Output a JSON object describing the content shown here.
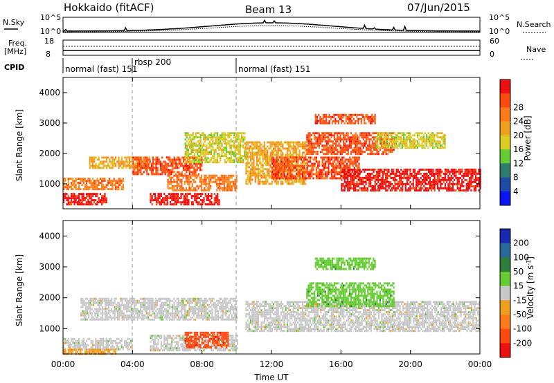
{
  "header": {
    "station": "Hokkaido (fitACF)",
    "beam": "Beam 13",
    "date": "07/Jun/2015"
  },
  "top_strips": {
    "nsky_label": "N.Sky",
    "nsky_ticks": [
      "10^5",
      "10^0"
    ],
    "nsearch_ticks": [
      "10^5",
      "10^0"
    ],
    "nsearch_label": "N.Search",
    "freq_label_1": "Freq.",
    "freq_label_2": "[MHz]",
    "freq_ticks": [
      "18",
      "8"
    ],
    "nave_ticks": [
      "60",
      "0"
    ],
    "nave_label": "Nave",
    "cpid_label": "CPID",
    "cpid_segments": [
      {
        "name": "normal (fast) 151",
        "start_hour": 0,
        "end_hour": 4
      },
      {
        "name": "rbsp 200",
        "start_hour": 4,
        "end_hour": 10
      },
      {
        "name": "normal (fast) 151",
        "start_hour": 10,
        "end_hour": 24
      }
    ]
  },
  "chart_data": [
    {
      "type": "heatmap",
      "quantity": "Power",
      "ylabel": "Slant Range [km]",
      "xlabel": "",
      "xlim_hours": [
        0,
        24
      ],
      "ylim_km": [
        180,
        4500
      ],
      "yticks": [
        "1000",
        "2000",
        "3000",
        "4000"
      ],
      "colorbar_label": "Power [dB]",
      "colorbar_ticks": [
        "4",
        "8",
        "12",
        "16",
        "20",
        "24",
        "28"
      ],
      "colorbar_colors": [
        "#0a14f0",
        "#1e4aa8",
        "#2e7d6c",
        "#66cc33",
        "#ddcc22",
        "#f0a020",
        "#ff7a1a",
        "#ff4a10",
        "#ee1010"
      ],
      "echo_regions": [
        {
          "t": [
            0.0,
            2.5
          ],
          "r": [
            300,
            700
          ],
          "level": 28
        },
        {
          "t": [
            0.0,
            3.5
          ],
          "r": [
            800,
            1200
          ],
          "level": 22
        },
        {
          "t": [
            1.5,
            5.0
          ],
          "r": [
            1500,
            1900
          ],
          "level": 20
        },
        {
          "t": [
            4.0,
            8.0
          ],
          "r": [
            1300,
            1900
          ],
          "level": 24
        },
        {
          "t": [
            5.0,
            9.0
          ],
          "r": [
            300,
            700
          ],
          "level": 28
        },
        {
          "t": [
            6.0,
            10.0
          ],
          "r": [
            800,
            1300
          ],
          "level": 22
        },
        {
          "t": [
            7.0,
            10.5
          ],
          "r": [
            1700,
            2700
          ],
          "level": 14
        },
        {
          "t": [
            10.5,
            14.0
          ],
          "r": [
            1000,
            2400
          ],
          "level": 20
        },
        {
          "t": [
            12.0,
            17.0
          ],
          "r": [
            1200,
            1900
          ],
          "level": 26
        },
        {
          "t": [
            14.0,
            19.0
          ],
          "r": [
            2000,
            2700
          ],
          "level": 24
        },
        {
          "t": [
            14.5,
            18.0
          ],
          "r": [
            3000,
            3300
          ],
          "level": 26
        },
        {
          "t": [
            16.0,
            24.0
          ],
          "r": [
            800,
            1500
          ],
          "level": 28
        },
        {
          "t": [
            18.0,
            22.0
          ],
          "r": [
            2200,
            2700
          ],
          "level": 16
        }
      ]
    },
    {
      "type": "heatmap",
      "quantity": "Velocity",
      "ylabel": "Slant Range [km]",
      "xlabel": "Time UT",
      "xlim_hours": [
        0,
        24
      ],
      "xticks": [
        "00:00",
        "04:00",
        "08:00",
        "12:00",
        "16:00",
        "20:00",
        "00:00"
      ],
      "ylim_km": [
        180,
        4500
      ],
      "yticks": [
        "1000",
        "2000",
        "3000",
        "4000"
      ],
      "colorbar_label": "Velocity [m s",
      "colorbar_label_sup": "-1",
      "colorbar_label_end": "]",
      "colorbar_ticks": [
        "200",
        "100",
        "50",
        "15",
        "-15",
        "-50",
        "-100",
        "-200"
      ],
      "colorbar_colors": [
        "#1a2ab0",
        "#2a6a9a",
        "#2e7d3c",
        "#66cc33",
        "#c8c8c8",
        "#f0a020",
        "#ff7a1a",
        "#ff4a10",
        "#ee1010"
      ],
      "echo_regions": [
        {
          "t": [
            0.0,
            4.0
          ],
          "r": [
            300,
            700
          ],
          "level": 0
        },
        {
          "t": [
            1.0,
            10.0
          ],
          "r": [
            1300,
            2000
          ],
          "level": 0
        },
        {
          "t": [
            5.0,
            10.0
          ],
          "r": [
            300,
            800
          ],
          "level": 0
        },
        {
          "t": [
            7.0,
            9.5
          ],
          "r": [
            400,
            900
          ],
          "level": -100
        },
        {
          "t": [
            10.5,
            24.0
          ],
          "r": [
            900,
            1900
          ],
          "level": 0
        },
        {
          "t": [
            14.0,
            19.0
          ],
          "r": [
            1700,
            2500
          ],
          "level": 30
        },
        {
          "t": [
            14.5,
            18.0
          ],
          "r": [
            2900,
            3300
          ],
          "level": 30
        },
        {
          "t": [
            0.0,
            3.0
          ],
          "r": [
            180,
            350
          ],
          "level": -30
        }
      ]
    }
  ]
}
